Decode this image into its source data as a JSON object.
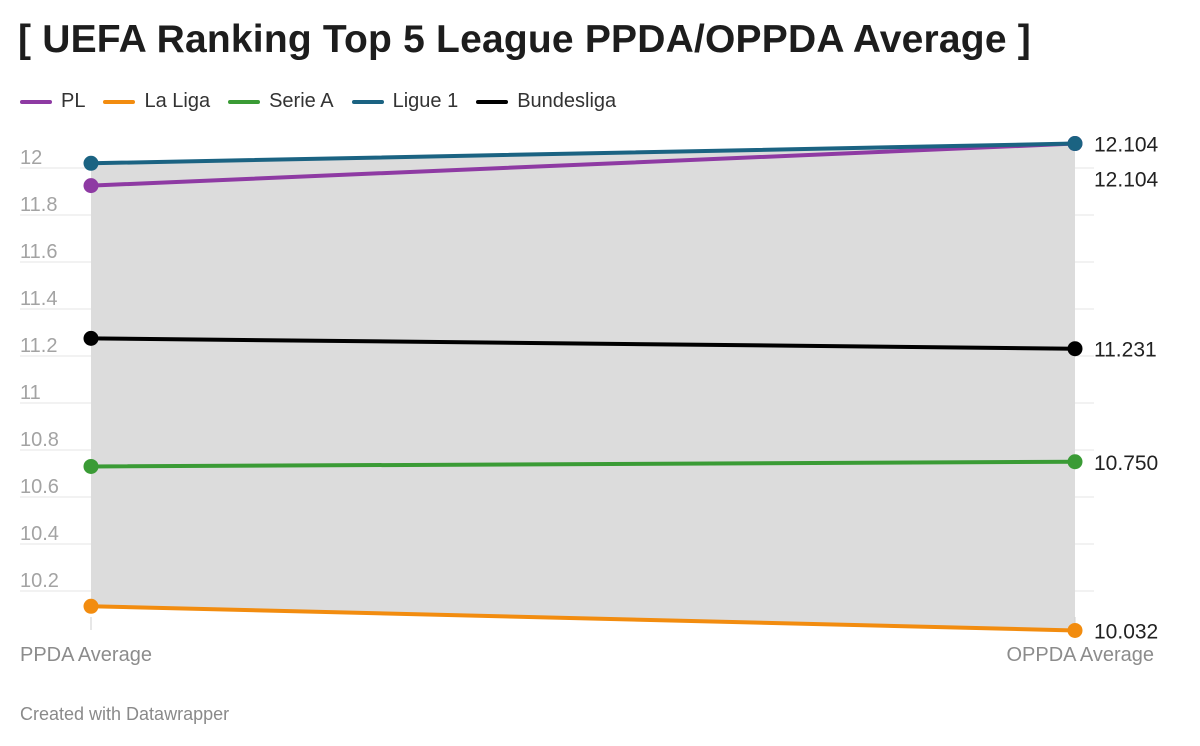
{
  "title": "[ UEFA Ranking Top 5 League PPDA/OPPDA Average ]",
  "footer": "Created with Datawrapper",
  "chart_data": {
    "type": "line",
    "title": "[ UEFA Ranking Top 5 League PPDA/OPPDA Average ]",
    "categories": [
      "PPDA Average",
      "OPPDA Average"
    ],
    "ylim": [
      10.05,
      12.15
    ],
    "yticks": [
      10.2,
      10.4,
      10.6,
      10.8,
      11,
      11.2,
      11.4,
      11.6,
      11.8,
      12
    ],
    "ytick_labels": [
      "10.2",
      "10.4",
      "10.6",
      "10.8",
      "11",
      "11.2",
      "11.4",
      "11.6",
      "11.8",
      "12"
    ],
    "grid": true,
    "legend_position": "top-left",
    "series": [
      {
        "name": "PL",
        "color": "#8e3aa3",
        "values": [
          11.925,
          12.104
        ],
        "end_label": "12.104"
      },
      {
        "name": "La Liga",
        "color": "#f28c0f",
        "values": [
          10.135,
          10.032
        ],
        "end_label": "10.032"
      },
      {
        "name": "Serie A",
        "color": "#3a9b35",
        "values": [
          10.73,
          10.75
        ],
        "end_label": "10.750"
      },
      {
        "name": "Ligue 1",
        "color": "#1b6382",
        "values": [
          12.02,
          12.104
        ],
        "end_label": "12.104"
      },
      {
        "name": "Bundesliga",
        "color": "#000000",
        "values": [
          11.275,
          11.231
        ],
        "end_label": "11.231"
      }
    ],
    "area_band": {
      "from": "La Liga",
      "to": "Ligue 1",
      "color": "#dadada"
    }
  }
}
